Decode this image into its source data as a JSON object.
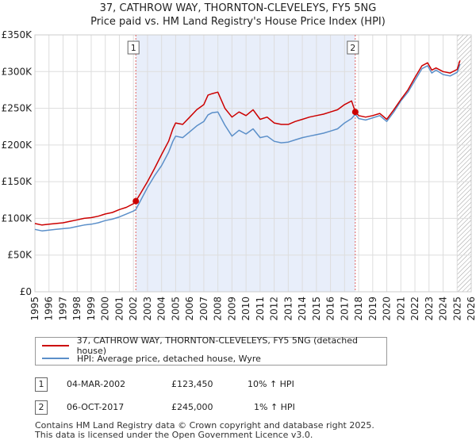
{
  "chart_data": {
    "type": "line",
    "title": "37, CATHROW WAY, THORNTON-CLEVELEYS, FY5 5NG",
    "subtitle": "Price paid vs. HM Land Registry's House Price Index (HPI)",
    "xlim": [
      1995,
      2026
    ],
    "ylim": [
      0,
      350000
    ],
    "y_ticks": [
      0,
      50000,
      100000,
      150000,
      200000,
      250000,
      300000,
      350000
    ],
    "y_tick_labels": [
      "£0",
      "£50K",
      "£100K",
      "£150K",
      "£200K",
      "£250K",
      "£300K",
      "£350K"
    ],
    "x_ticks": [
      1995,
      1996,
      1997,
      1998,
      1999,
      2000,
      2001,
      2002,
      2003,
      2004,
      2005,
      2006,
      2007,
      2008,
      2009,
      2010,
      2011,
      2012,
      2013,
      2014,
      2015,
      2016,
      2017,
      2018,
      2019,
      2020,
      2021,
      2022,
      2023,
      2024,
      2025,
      2026
    ],
    "grid": true,
    "shaded_period": [
      2002.17,
      2017.76
    ],
    "hatched_from": 2025.0,
    "colors": {
      "property": "#cc0000",
      "hpi": "#5b8fc9",
      "shade": "#e8eefa",
      "vline": "#e06060"
    },
    "series": [
      {
        "name": "37, CATHROW WAY, THORNTON-CLEVELEYS, FY5 5NG (detached house)",
        "x": [
          1995.0,
          1995.5,
          1996.0,
          1996.5,
          1997.0,
          1997.5,
          1998.0,
          1998.5,
          1999.0,
          1999.5,
          2000.0,
          2000.5,
          2001.0,
          2001.5,
          2002.0,
          2002.17,
          2002.5,
          2003.0,
          2003.5,
          2004.0,
          2004.5,
          2004.8,
          2005.0,
          2005.5,
          2006.0,
          2006.5,
          2007.0,
          2007.3,
          2007.6,
          2008.0,
          2008.5,
          2009.0,
          2009.5,
          2010.0,
          2010.5,
          2011.0,
          2011.5,
          2012.0,
          2012.5,
          2013.0,
          2013.5,
          2014.0,
          2014.5,
          2015.0,
          2015.5,
          2016.0,
          2016.5,
          2017.0,
          2017.5,
          2017.76,
          2018.0,
          2018.5,
          2019.0,
          2019.5,
          2020.0,
          2020.5,
          2021.0,
          2021.5,
          2022.0,
          2022.5,
          2022.9,
          2023.2,
          2023.5,
          2024.0,
          2024.5,
          2025.0,
          2025.2
        ],
        "values": [
          93000,
          91000,
          92000,
          93000,
          94000,
          96000,
          98000,
          100000,
          101000,
          103000,
          106000,
          108000,
          112000,
          115000,
          120000,
          123450,
          134000,
          150000,
          168000,
          187000,
          205000,
          222000,
          230000,
          228000,
          238000,
          248000,
          255000,
          268000,
          270000,
          272000,
          250000,
          238000,
          245000,
          240000,
          248000,
          235000,
          238000,
          230000,
          228000,
          228000,
          232000,
          235000,
          238000,
          240000,
          242000,
          245000,
          248000,
          255000,
          260000,
          245000,
          240000,
          238000,
          240000,
          243000,
          235000,
          248000,
          262000,
          275000,
          292000,
          308000,
          312000,
          302000,
          305000,
          300000,
          298000,
          303000,
          315000
        ]
      },
      {
        "name": "HPI: Average price, detached house, Wyre",
        "x": [
          1995.0,
          1995.5,
          1996.0,
          1996.5,
          1997.0,
          1997.5,
          1998.0,
          1998.5,
          1999.0,
          1999.5,
          2000.0,
          2000.5,
          2001.0,
          2001.5,
          2002.0,
          2002.17,
          2002.5,
          2003.0,
          2003.5,
          2004.0,
          2004.5,
          2004.8,
          2005.0,
          2005.5,
          2006.0,
          2006.5,
          2007.0,
          2007.3,
          2007.6,
          2008.0,
          2008.5,
          2009.0,
          2009.5,
          2010.0,
          2010.5,
          2011.0,
          2011.5,
          2012.0,
          2012.5,
          2013.0,
          2013.5,
          2014.0,
          2014.5,
          2015.0,
          2015.5,
          2016.0,
          2016.5,
          2017.0,
          2017.5,
          2017.76,
          2018.0,
          2018.5,
          2019.0,
          2019.5,
          2020.0,
          2020.5,
          2021.0,
          2021.5,
          2022.0,
          2022.5,
          2022.9,
          2023.2,
          2023.5,
          2024.0,
          2024.5,
          2025.0,
          2025.2
        ],
        "values": [
          85000,
          83000,
          84000,
          85000,
          86000,
          87000,
          89000,
          91000,
          92000,
          94000,
          97000,
          99000,
          102000,
          106000,
          110000,
          112000,
          124000,
          142000,
          158000,
          172000,
          190000,
          205000,
          212000,
          210000,
          218000,
          226000,
          232000,
          241000,
          244000,
          245000,
          227000,
          212000,
          220000,
          215000,
          222000,
          210000,
          212000,
          205000,
          203000,
          204000,
          207000,
          210000,
          212000,
          214000,
          216000,
          219000,
          222000,
          230000,
          236000,
          242000,
          236000,
          234000,
          237000,
          240000,
          232000,
          245000,
          260000,
          272000,
          288000,
          304000,
          308000,
          298000,
          302000,
          296000,
          294000,
          299000,
          310000
        ]
      }
    ],
    "markers": [
      {
        "label": "1",
        "x": 2002.17,
        "value": 123450
      },
      {
        "label": "2",
        "x": 2017.76,
        "value": 245000
      }
    ]
  },
  "legend": {
    "property_label": "37, CATHROW WAY, THORNTON-CLEVELEYS, FY5 5NG (detached house)",
    "hpi_label": "HPI: Average price, detached house, Wyre"
  },
  "transactions": [
    {
      "num": "1",
      "date": "04-MAR-2002",
      "price": "£123,450",
      "hpi": "10% ↑ HPI"
    },
    {
      "num": "2",
      "date": "06-OCT-2017",
      "price": "£245,000",
      "hpi": "1% ↑ HPI"
    }
  ],
  "footer": {
    "line1": "Contains HM Land Registry data © Crown copyright and database right 2025.",
    "line2": "This data is licensed under the Open Government Licence v3.0."
  }
}
